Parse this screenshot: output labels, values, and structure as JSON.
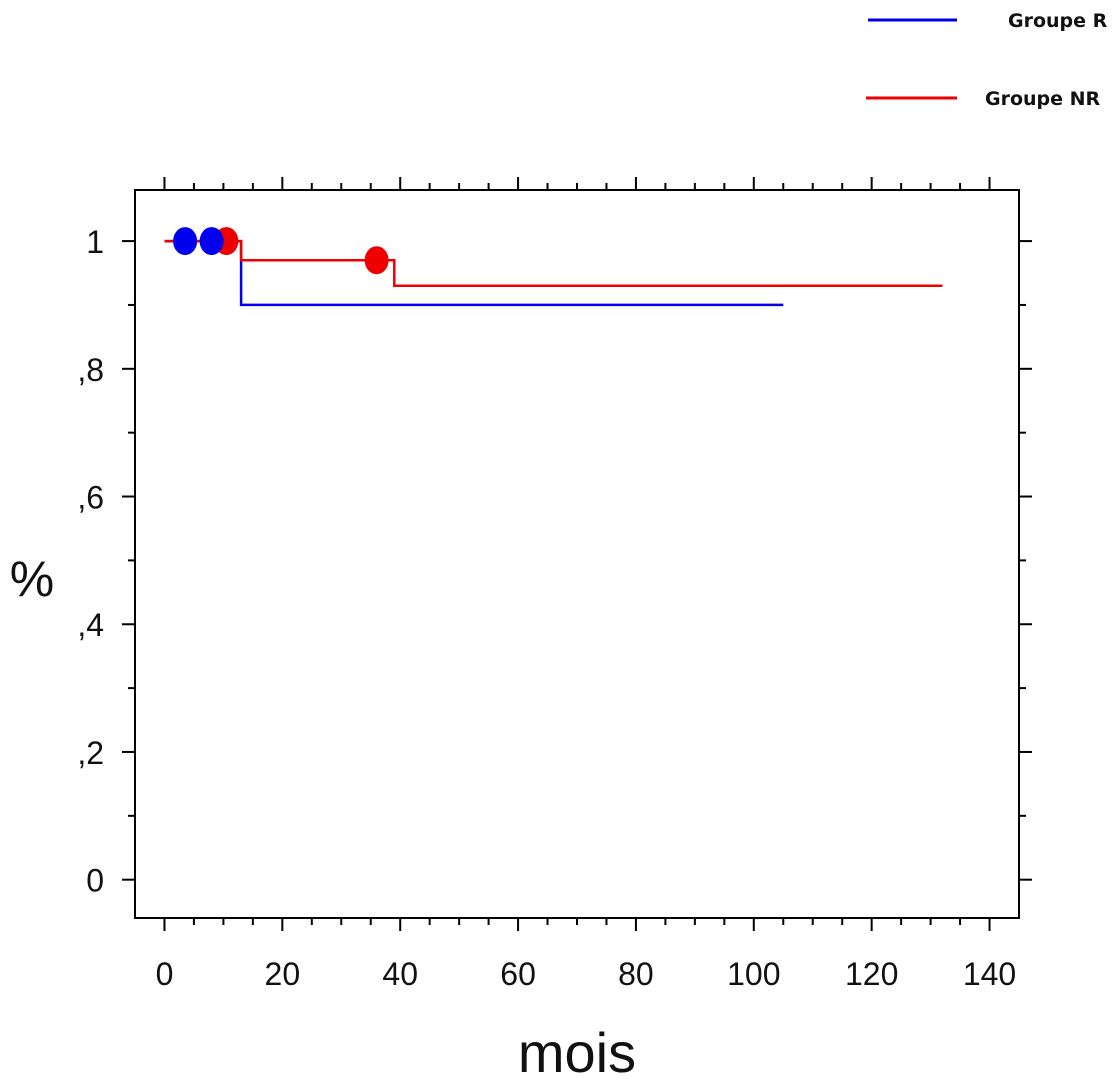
{
  "chart_data": {
    "type": "line",
    "xlabel": "mois",
    "ylabel": "%",
    "xlim": [
      -5,
      145
    ],
    "ylim": [
      -0.06,
      1.08
    ],
    "xticks": [
      0,
      20,
      40,
      60,
      80,
      100,
      120,
      140
    ],
    "xtick_labels": [
      "0",
      "20",
      "40",
      "60",
      "80",
      "100",
      "120",
      "140"
    ],
    "yticks": [
      0,
      0.2,
      0.4,
      0.6,
      0.8,
      1
    ],
    "ytick_labels": [
      "0",
      ",2",
      ",4",
      ",6",
      ",8",
      "1"
    ],
    "grid": false,
    "legend_position": "top-right",
    "series": [
      {
        "name": "Groupe R",
        "color": "#0000ee",
        "step": [
          [
            0,
            1.0
          ],
          [
            13,
            1.0
          ],
          [
            13,
            0.9
          ],
          [
            105,
            0.9
          ]
        ],
        "censored": [
          [
            3.5,
            1.0
          ],
          [
            8,
            1.0
          ]
        ]
      },
      {
        "name": "Groupe NR",
        "color": "#ee0000",
        "step": [
          [
            0,
            1.0
          ],
          [
            13,
            1.0
          ],
          [
            13,
            0.97
          ],
          [
            39,
            0.97
          ],
          [
            39,
            0.93
          ],
          [
            132,
            0.93
          ]
        ],
        "censored": [
          [
            10.5,
            1.0
          ],
          [
            36,
            0.97
          ]
        ]
      }
    ]
  }
}
